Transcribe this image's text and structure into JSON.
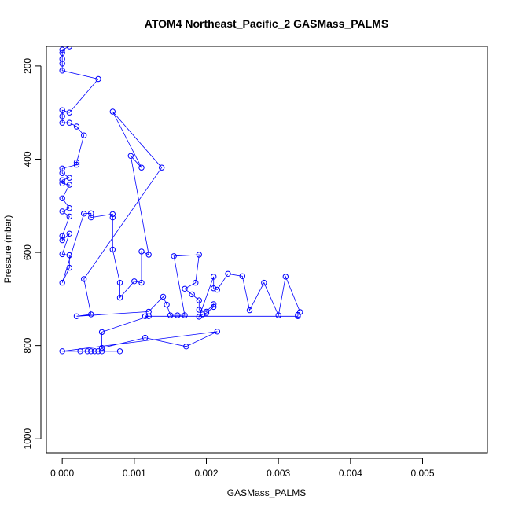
{
  "chart_data": {
    "type": "line",
    "title": "ATOM4 Northeast_Pacific_2 GASMass_PALMS",
    "xlabel": "GASMass_PALMS",
    "ylabel": "Pressure (mbar)",
    "xlim": [
      -0.00022,
      0.0059
    ],
    "ylim": [
      1030,
      158
    ],
    "y_inverted": true,
    "grid": false,
    "legend": "none",
    "x_ticks": [
      0,
      0.001,
      0.002,
      0.003,
      0.004,
      0.005
    ],
    "x_tick_labels": [
      "0.000",
      "0.001",
      "0.002",
      "0.003",
      "0.004",
      "0.005"
    ],
    "y_ticks": [
      200,
      400,
      600,
      800,
      1000
    ],
    "y_tick_labels": [
      "200",
      "400",
      "600",
      "800",
      "1000"
    ],
    "series": [
      {
        "color": "#0000ff",
        "marker": "open-circle",
        "points": [
          [
            0.0001,
            158
          ],
          [
            0.0,
            165
          ],
          [
            0.0,
            172
          ],
          [
            0.0,
            185
          ],
          [
            0.0,
            195
          ],
          [
            0.0,
            210
          ],
          [
            0.0005,
            228
          ],
          [
            0.0001,
            300
          ],
          [
            0.0,
            295
          ],
          [
            0.0,
            308
          ],
          [
            0.0,
            322
          ],
          [
            0.0001,
            322
          ],
          [
            0.0002,
            330
          ],
          [
            0.0003,
            349
          ],
          [
            0.0002,
            407
          ],
          [
            0.0002,
            412
          ],
          [
            0.0,
            420
          ],
          [
            0.0,
            430
          ],
          [
            0.0001,
            440
          ],
          [
            0.0,
            445
          ],
          [
            0.0,
            452
          ],
          [
            0.0001,
            455
          ],
          [
            0.0,
            484
          ],
          [
            0.0001,
            505
          ],
          [
            0.0,
            512
          ],
          [
            0.0001,
            523
          ],
          [
            0.0,
            565
          ],
          [
            0.0,
            574
          ],
          [
            0.0001,
            560
          ],
          [
            0.0,
            604
          ],
          [
            0.0001,
            606
          ],
          [
            0.0001,
            633
          ],
          [
            0.0,
            665
          ],
          [
            0.0003,
            517
          ],
          [
            0.0004,
            516
          ],
          [
            0.0004,
            525
          ],
          [
            0.0007,
            518
          ],
          [
            0.0007,
            525
          ],
          [
            0.0007,
            594
          ],
          [
            0.0008,
            665
          ],
          [
            0.0008,
            697
          ],
          [
            0.001,
            662
          ],
          [
            0.0011,
            665
          ],
          [
            0.0011,
            598
          ],
          [
            0.0012,
            605
          ],
          [
            0.00095,
            393
          ],
          [
            0.0011,
            418
          ],
          [
            0.0007,
            298
          ],
          [
            0.00138,
            418
          ],
          [
            0.0003,
            657
          ],
          [
            0.0004,
            733
          ],
          [
            0.0002,
            737
          ],
          [
            0.0012,
            727
          ],
          [
            0.0014,
            695
          ],
          [
            0.00145,
            712
          ],
          [
            0.0015,
            735
          ],
          [
            0.0016,
            735
          ],
          [
            0.0017,
            735
          ],
          [
            0.00155,
            608
          ],
          [
            0.0019,
            605
          ],
          [
            0.00185,
            665
          ],
          [
            0.0017,
            678
          ],
          [
            0.0018,
            690
          ],
          [
            0.0019,
            703
          ],
          [
            0.0019,
            723
          ],
          [
            0.002,
            727
          ],
          [
            0.0021,
            711
          ],
          [
            0.0021,
            717
          ],
          [
            0.002,
            730
          ],
          [
            0.00195,
            733
          ],
          [
            0.0019,
            738
          ],
          [
            0.0021,
            652
          ],
          [
            0.0021,
            677
          ],
          [
            0.00215,
            680
          ],
          [
            0.0023,
            646
          ],
          [
            0.0025,
            651
          ],
          [
            0.0026,
            724
          ],
          [
            0.0028,
            665
          ],
          [
            0.003,
            735
          ],
          [
            0.0031,
            652
          ],
          [
            0.0033,
            728
          ],
          [
            0.00327,
            734
          ],
          [
            0.00327,
            737
          ],
          [
            0.00115,
            737
          ],
          [
            0.0012,
            737
          ],
          [
            0.00055,
            771
          ],
          [
            0.00055,
            805
          ],
          [
            0.00115,
            783
          ],
          [
            0.00172,
            802
          ],
          [
            0.00215,
            770
          ],
          [
            0.0,
            812
          ],
          [
            0.00025,
            812
          ],
          [
            0.00035,
            812
          ],
          [
            0.0004,
            812
          ],
          [
            0.00045,
            812
          ],
          [
            0.0005,
            812
          ],
          [
            0.00055,
            812
          ],
          [
            0.0008,
            812
          ]
        ]
      }
    ]
  }
}
